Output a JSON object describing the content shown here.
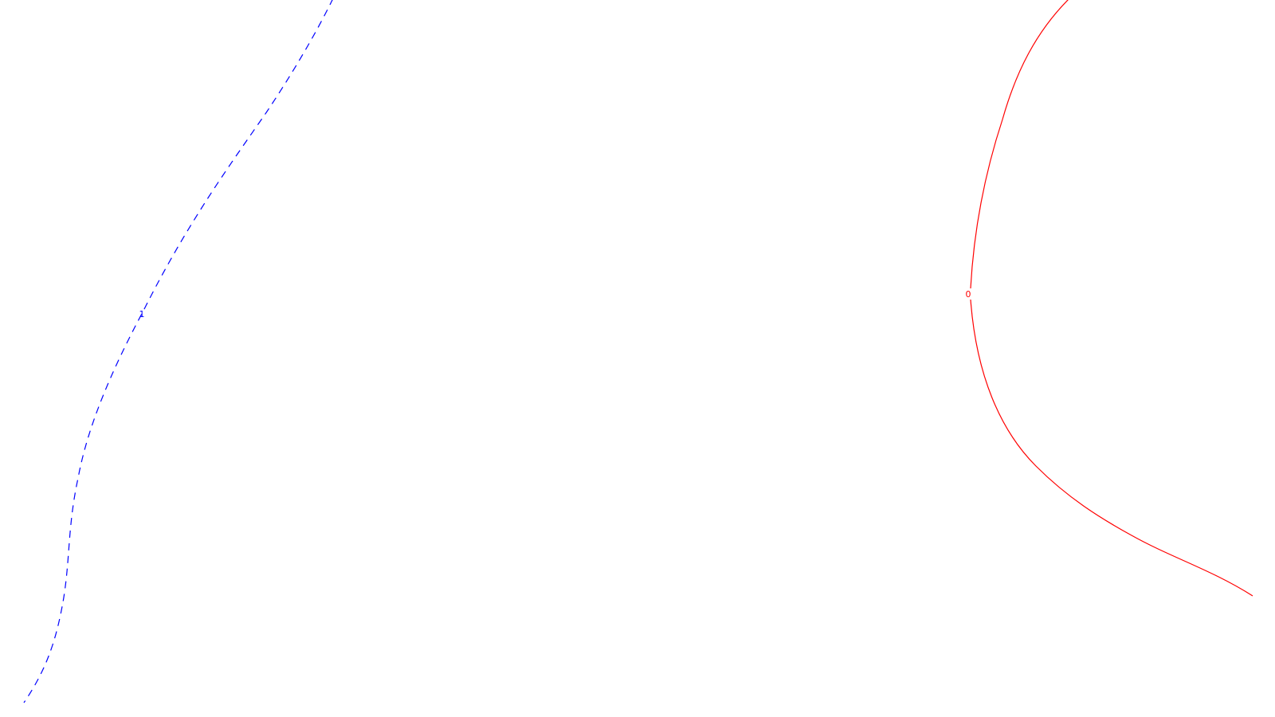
{
  "chart_data": {
    "type": "contour",
    "title": "",
    "xlabel": "",
    "ylabel": "",
    "grid": false,
    "legend": "none",
    "contours": [
      {
        "level_label": "1",
        "color": "#0000ff",
        "line_style": "dashed"
      },
      {
        "level_label": "0",
        "color": "#ff0000",
        "line_style": "solid"
      }
    ]
  }
}
